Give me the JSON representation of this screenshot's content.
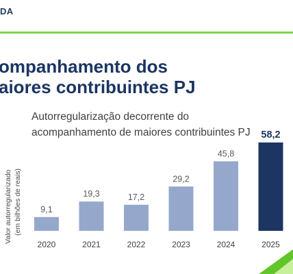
{
  "header": {
    "brand": "DA"
  },
  "slide": {
    "title": "ompanhamento dos\naiores contribuintes PJ"
  },
  "colors": {
    "accent_green": "#7cd64a",
    "title_blue": "#1b3563",
    "bar_light": "#95a8cc",
    "bar_dark": "#1c3562"
  },
  "chart_data": {
    "type": "bar",
    "title": "Autorregularização decorrente do\nacompanhamento de maiores contribuintes PJ",
    "ylabel_lines": [
      "Valor autorregularizado",
      "(em bilhões de reais)"
    ],
    "categories": [
      "2020",
      "2021",
      "2022",
      "2023",
      "2024",
      "2025"
    ],
    "values": [
      9.1,
      19.3,
      17.2,
      29.2,
      45.8,
      58.2
    ],
    "value_labels": [
      "9,1",
      "19,3",
      "17,2",
      "29,2",
      "45,8",
      "58,2"
    ],
    "highlight_index": 5,
    "ylim": [
      0,
      58.2
    ],
    "grid": false,
    "legend": "none"
  }
}
